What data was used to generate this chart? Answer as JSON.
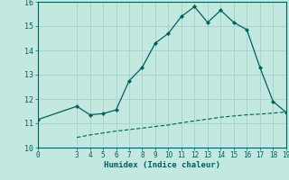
{
  "xlabel": "Humidex (Indice chaleur)",
  "ylabel": "",
  "bg_color": "#c2e8e0",
  "grid_color": "#a8d4cc",
  "line_color": "#006060",
  "xlim": [
    0,
    19
  ],
  "ylim": [
    10,
    16
  ],
  "xticks": [
    0,
    3,
    4,
    5,
    6,
    7,
    8,
    9,
    10,
    11,
    12,
    13,
    14,
    15,
    16,
    17,
    18,
    19
  ],
  "yticks": [
    10,
    11,
    12,
    13,
    14,
    15,
    16
  ],
  "upper_x": [
    0,
    3,
    4,
    5,
    6,
    7,
    8,
    9,
    10,
    11,
    12,
    13,
    14,
    15,
    16,
    17,
    18,
    19
  ],
  "upper_y": [
    11.15,
    11.7,
    11.35,
    11.4,
    11.55,
    12.75,
    13.3,
    14.3,
    14.7,
    15.4,
    15.8,
    15.15,
    15.65,
    15.15,
    14.85,
    13.3,
    11.9,
    11.45
  ],
  "lower_x": [
    3,
    4,
    5,
    6,
    7,
    8,
    9,
    10,
    11,
    12,
    13,
    14,
    15,
    16,
    17,
    18,
    19
  ],
  "lower_y": [
    10.42,
    10.52,
    10.6,
    10.68,
    10.74,
    10.8,
    10.87,
    10.93,
    11.02,
    11.1,
    11.17,
    11.25,
    11.3,
    11.35,
    11.38,
    11.42,
    11.47
  ]
}
